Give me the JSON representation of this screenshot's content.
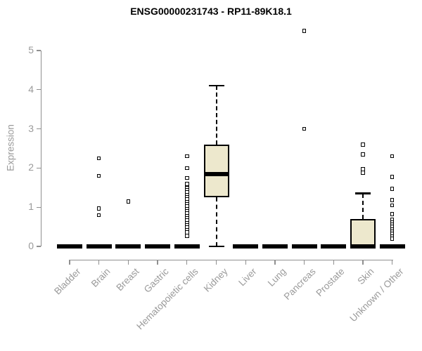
{
  "chart_data": {
    "type": "boxplot",
    "title": "ENSG00000231743 - RP11-89K18.1",
    "ylabel": "Expression",
    "xlabel": "",
    "ylim": [
      0,
      5
    ],
    "yticks": [
      0,
      1,
      2,
      3,
      4,
      5
    ],
    "grid": false,
    "legend": "none",
    "box_fill": "#ede8cd",
    "box_stroke": "#000000",
    "axis_color": "#909090",
    "label_color": "#9a9a9a",
    "title_color": "#000000",
    "categories": [
      "Bladder",
      "Brain",
      "Breast",
      "Gastric",
      "Hematopoietic cells",
      "Kidney",
      "Liver",
      "Lung",
      "Pancreas",
      "Prostate",
      "Skin",
      "Unknown / Other"
    ],
    "series": [
      {
        "name": "Bladder",
        "median": 0,
        "q1": 0,
        "q3": 0,
        "whisker_low": 0,
        "whisker_high": 0,
        "outliers": []
      },
      {
        "name": "Brain",
        "median": 0,
        "q1": 0,
        "q3": 0,
        "whisker_low": 0,
        "whisker_high": 0,
        "outliers": [
          2.25,
          1.8,
          0.97,
          0.8
        ]
      },
      {
        "name": "Breast",
        "median": 0,
        "q1": 0,
        "q3": 0,
        "whisker_low": 0,
        "whisker_high": 0,
        "outliers": [
          1.15
        ]
      },
      {
        "name": "Gastric",
        "median": 0,
        "q1": 0,
        "q3": 0,
        "whisker_low": 0,
        "whisker_high": 0,
        "outliers": []
      },
      {
        "name": "Hematopoietic cells",
        "median": 0,
        "q1": 0,
        "q3": 0,
        "whisker_low": 0,
        "whisker_high": 0,
        "outliers": [
          2.3,
          2.0,
          1.75,
          1.6,
          1.5,
          1.44,
          1.38,
          1.32,
          1.26,
          1.2,
          1.14,
          1.08,
          1.02,
          0.96,
          0.9,
          0.84,
          0.78,
          0.72,
          0.66,
          0.6,
          0.54,
          0.48,
          0.42,
          0.36,
          0.27
        ]
      },
      {
        "name": "Kidney",
        "median": 1.85,
        "q1": 1.25,
        "q3": 2.6,
        "whisker_low": 0,
        "whisker_high": 4.1,
        "outliers": []
      },
      {
        "name": "Liver",
        "median": 0,
        "q1": 0,
        "q3": 0,
        "whisker_low": 0,
        "whisker_high": 0,
        "outliers": []
      },
      {
        "name": "Lung",
        "median": 0,
        "q1": 0,
        "q3": 0,
        "whisker_low": 0,
        "whisker_high": 0,
        "outliers": []
      },
      {
        "name": "Pancreas",
        "median": 0,
        "q1": 0,
        "q3": 0,
        "whisker_low": 0,
        "whisker_high": 0,
        "outliers": [
          5.5,
          3.0
        ]
      },
      {
        "name": "Prostate",
        "median": 0,
        "q1": 0,
        "q3": 0,
        "whisker_low": 0,
        "whisker_high": 0,
        "outliers": []
      },
      {
        "name": "Skin",
        "median": 0,
        "q1": 0,
        "q3": 0.7,
        "whisker_low": 0,
        "whisker_high": 1.35,
        "outliers": [
          2.6,
          2.35,
          1.97,
          1.88
        ]
      },
      {
        "name": "Unknown / Other",
        "median": 0,
        "q1": 0,
        "q3": 0,
        "whisker_low": 0,
        "whisker_high": 0,
        "outliers": [
          2.3,
          1.77,
          1.47,
          1.18,
          1.05,
          0.82,
          0.68,
          0.62,
          0.56,
          0.5,
          0.44,
          0.38,
          0.32,
          0.26,
          0.2
        ]
      }
    ]
  }
}
